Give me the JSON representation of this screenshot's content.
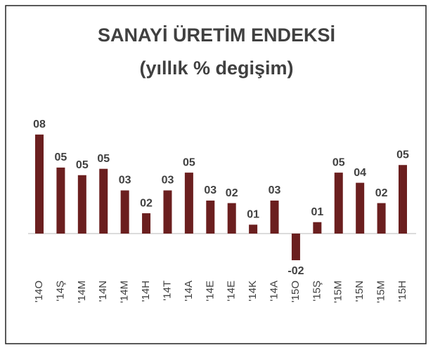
{
  "chart_data": {
    "type": "bar",
    "title": [
      "SANAYİ ÜRETİM ENDEKSİ",
      "(yıllık % degişim)"
    ],
    "categories": [
      "'14O",
      "'14Ş",
      "'14M",
      "'14N",
      "'14M",
      "'14H",
      "'14T",
      "'14A",
      "'14E",
      "'14E",
      "'14K",
      "'14A",
      "'15O",
      "'15Ş",
      "'15M",
      "'15N",
      "'15M",
      "'15H"
    ],
    "values": [
      7.8,
      5.2,
      4.6,
      5.1,
      3.4,
      1.6,
      3.4,
      4.8,
      2.6,
      2.4,
      0.7,
      2.6,
      -2.1,
      0.9,
      4.8,
      4.0,
      2.4,
      5.4
    ],
    "value_labels": [
      "08",
      "05",
      "05",
      "05",
      "03",
      "02",
      "03",
      "05",
      "03",
      "02",
      "01",
      "03",
      "-02",
      "01",
      "05",
      "04",
      "02",
      "05"
    ],
    "color": "#6b1f1f"
  }
}
